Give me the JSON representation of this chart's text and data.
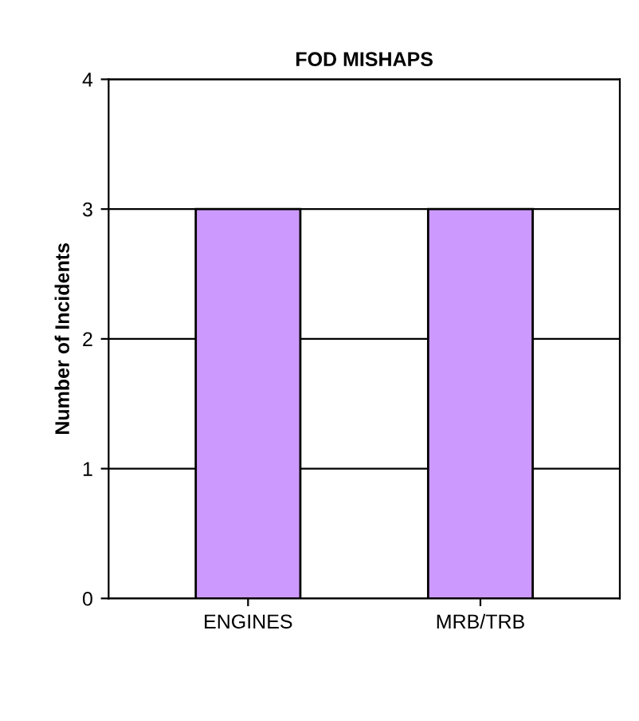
{
  "chart_data": {
    "type": "bar",
    "title": "FOD MISHAPS",
    "ylabel": "Number of Incidents",
    "categories": [
      "ENGINES",
      "MRB/TRB"
    ],
    "values": [
      3,
      3
    ],
    "color": "#cc99ff",
    "ylim": [
      0,
      4
    ],
    "yticks": [
      0,
      1,
      2,
      3,
      4
    ],
    "grid": "y"
  }
}
